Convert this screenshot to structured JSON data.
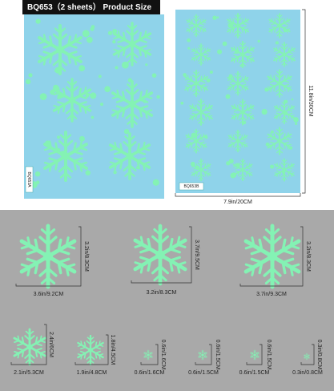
{
  "header": {
    "title": "BQ653（2 sheets） Product Size"
  },
  "sheets": [
    {
      "label": "BQ653A"
    },
    {
      "label": "BQ653B"
    }
  ],
  "sheet_size": {
    "height": "11.8in/30CM",
    "width": "7.9in/20CM"
  },
  "items": [
    {
      "width": "3.6in/9.2CM",
      "height": "3.2in/8.3CM"
    },
    {
      "width": "3.2in/8.3CM",
      "height": "3.7in/9.5CM"
    },
    {
      "width": "3.7in/9.3CM",
      "height": "3.2in/8.3CM"
    },
    {
      "width": "2.1in/5.3CM",
      "height": "2.4in/6CM"
    },
    {
      "width": "1.9in/4.8CM",
      "height": "1.8in/4.5CM"
    },
    {
      "width": "0.6in/1.6CM",
      "height": "0.6in/1.6CM"
    },
    {
      "width": "0.6in/1.5CM",
      "height": "0.6in/1.5CM"
    },
    {
      "width": "0.6in/1.5CM",
      "height": "0.6in/1.5CM"
    },
    {
      "width": "0.3in/0.8CM",
      "height": "0.3in/0.8CM"
    }
  ]
}
